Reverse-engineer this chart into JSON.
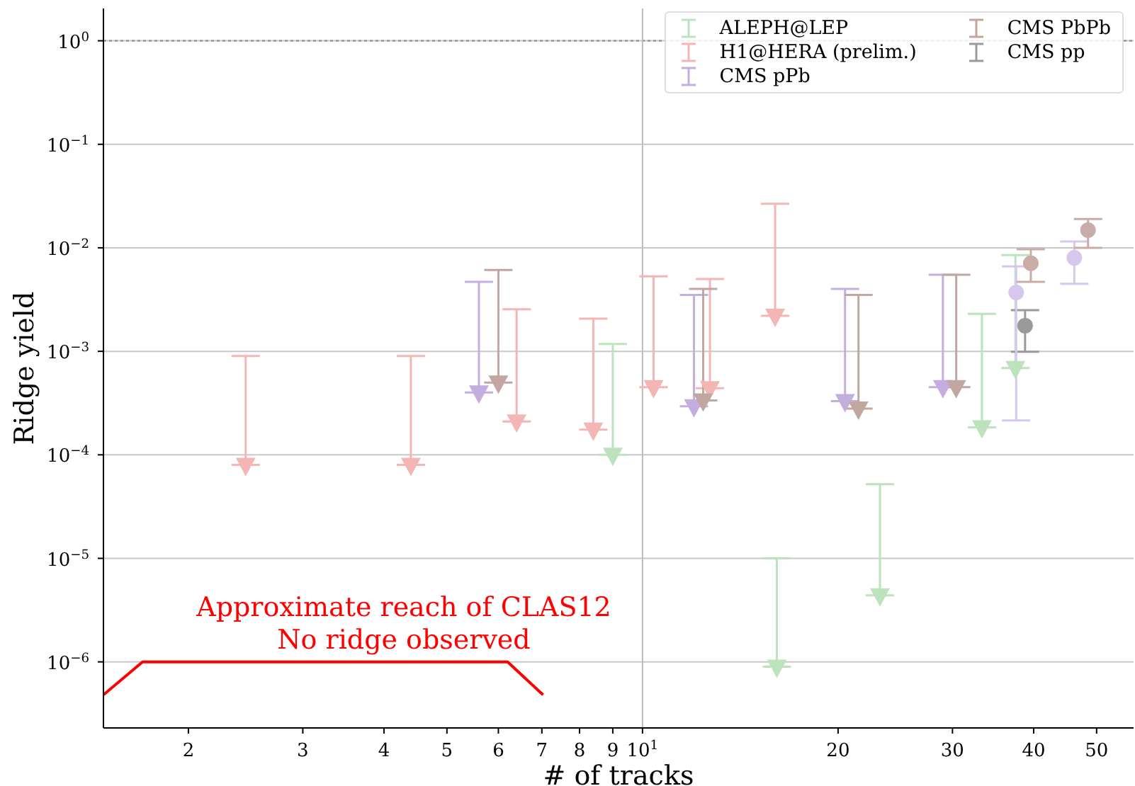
{
  "chart_data": {
    "type": "scatter",
    "xlabel": "# of tracks",
    "ylabel": "Ridge yield",
    "log": "xy",
    "grid": "y",
    "legend": "top right",
    "xlim": [
      1.48,
      57
    ],
    "ylim": [
      2.3e-07,
      2.05
    ],
    "xticks": [
      2,
      3,
      4,
      5,
      6,
      7,
      8,
      9,
      {
        "value": 10,
        "label": "10$^{1}$"
      },
      20,
      30,
      40,
      50
    ],
    "yticks": [
      {
        "value": 1e-06,
        "label": "10$^{−6}$"
      },
      {
        "value": 1e-05,
        "label": "10$^{−5}$"
      },
      {
        "value": 0.0001,
        "label": "10$^{−4}$"
      },
      {
        "value": 0.001,
        "label": "10$^{−3}$"
      },
      {
        "value": 0.01,
        "label": "10$^{−2}$"
      },
      {
        "value": 0.1,
        "label": "10$^{−1}$"
      },
      {
        "value": 1,
        "label": "10$^{0}$"
      }
    ],
    "series": [
      {
        "name": "ALEPH@LEP",
        "color": "#bde3bd",
        "marker": "triangle",
        "x": [
          9.0,
          16.1,
          23.2,
          33.3,
          37.5
        ],
        "values": [
          0.0001,
          9e-07,
          4.4e-06,
          0.000184,
          0.00069
        ],
        "errors": [
          [
            0.0001,
            0.00118
          ],
          [
            9e-07,
            1e-05
          ],
          [
            4.4e-06,
            5.2e-05
          ],
          [
            0.000184,
            0.0023
          ],
          [
            0.00069,
            0.0085
          ]
        ]
      },
      {
        "name": "H1@HERA (prelim.)",
        "color": "#f4b6b4",
        "marker": "triangle",
        "x": [
          2.45,
          4.4,
          6.4,
          8.4,
          10.4,
          12.7,
          16.0
        ],
        "values": [
          8e-05,
          8e-05,
          0.00021,
          0.000175,
          0.00045,
          0.00044,
          0.0022
        ],
        "errors": [
          [
            8e-05,
            0.0009
          ],
          [
            8e-05,
            0.0009
          ],
          [
            0.00021,
            0.00255
          ],
          [
            0.000175,
            0.00207
          ],
          [
            0.00045,
            0.0053
          ],
          [
            0.00044,
            0.005
          ],
          [
            0.0022,
            0.0266
          ]
        ]
      },
      {
        "name": "CMS pPb",
        "color": "#c4aedf",
        "marker": "triangle",
        "x": [
          5.6,
          12.0,
          20.5,
          29.0
        ],
        "values": [
          0.0004,
          0.000295,
          0.00033,
          0.00045
        ],
        "errors": [
          [
            0.0004,
            0.0047
          ],
          [
            0.000295,
            0.0035
          ],
          [
            0.00033,
            0.004
          ],
          [
            0.00045,
            0.0055
          ]
        ]
      },
      {
        "name": "CMS PbPb",
        "color": "#c2a6a2",
        "marker": "triangle",
        "x": [
          6.0,
          12.4,
          21.5,
          30.4
        ],
        "values": [
          0.0005,
          0.000335,
          0.00028,
          0.00045
        ],
        "errors": [
          [
            0.0005,
            0.0061
          ],
          [
            0.000335,
            0.004
          ],
          [
            0.00028,
            0.0035
          ],
          [
            0.00045,
            0.0055
          ]
        ]
      },
      {
        "name": "CMS pp",
        "color": "#9a9a9a",
        "marker": "circle",
        "x": [
          38.8
        ],
        "values": [
          0.00177
        ],
        "errors": [
          [
            0.00099,
            0.0025
          ]
        ]
      },
      {
        "color": "#d6c8ec",
        "marker": "circle",
        "x": [
          37.6,
          46.2
        ],
        "values": [
          0.0037,
          0.008
        ],
        "errors": [
          [
            0.000215,
            0.0066
          ],
          [
            0.0045,
            0.0115
          ]
        ]
      },
      {
        "color": "#c8aca8",
        "marker": "circle",
        "x": [
          39.6,
          48.5
        ],
        "values": [
          0.0071,
          0.0148
        ],
        "errors": [
          [
            0.0047,
            0.0097
          ],
          [
            0.01,
            0.019
          ]
        ]
      },
      {
        "type": "line",
        "color": "#ff0000",
        "marker": "none",
        "x": [
          1.48,
          1.7,
          6.2,
          7.03
        ],
        "values": [
          4.8e-07,
          1e-06,
          1e-06,
          4.8e-07
        ]
      }
    ],
    "ref_lines": [
      {
        "axis": "y",
        "value": 1,
        "color": "#888888",
        "line_style": "dotted"
      },
      {
        "axis": "x",
        "value": 10,
        "color": "#bbbbbb",
        "line_style": "solid"
      }
    ],
    "annotations": [
      "Approximate reach of CLAS12\nNo ridge observed"
    ]
  }
}
